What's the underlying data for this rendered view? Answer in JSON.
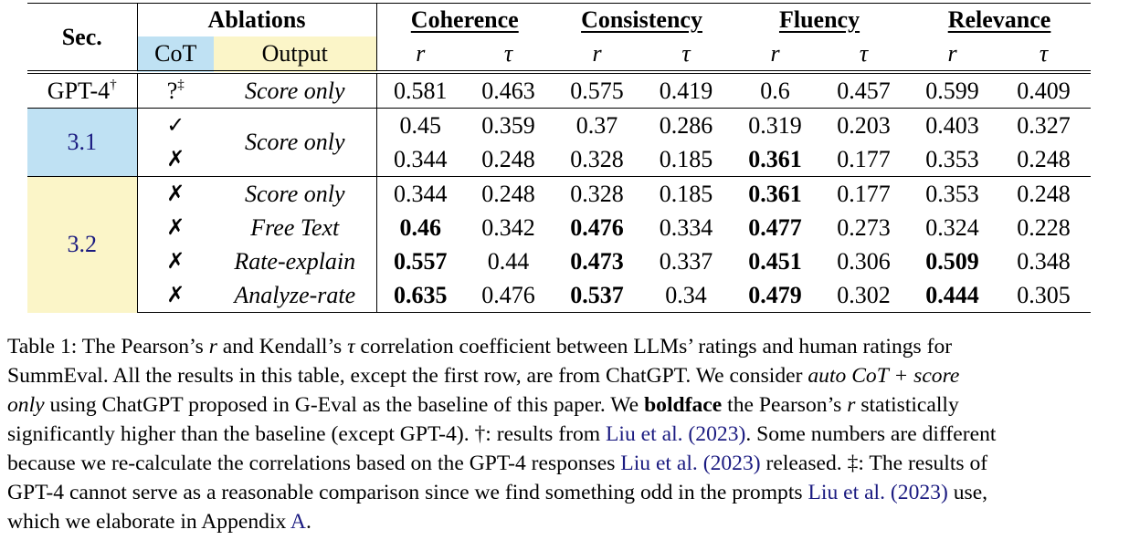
{
  "table": {
    "header": {
      "sec": "Sec.",
      "ablations": "Ablations",
      "cot": "CoT",
      "output": "Output",
      "metrics": [
        "Coherence",
        "Consistency",
        "Fluency",
        "Relevance"
      ],
      "r": "r",
      "tau": "τ"
    },
    "rows": [
      {
        "sec": "GPT-4",
        "sec_sup": "†",
        "cot": "?",
        "cot_sup": "‡",
        "output": "Score only",
        "values": [
          "0.581",
          "0.463",
          "0.575",
          "0.419",
          "0.6",
          "0.457",
          "0.599",
          "0.409"
        ],
        "bold": [
          false,
          false,
          false,
          false,
          false,
          false,
          false,
          false
        ]
      },
      {
        "sec": "3.1",
        "cot": "✓",
        "output": "Score only",
        "values": [
          "0.45",
          "0.359",
          "0.37",
          "0.286",
          "0.319",
          "0.203",
          "0.403",
          "0.327"
        ],
        "bold": [
          false,
          false,
          false,
          false,
          false,
          false,
          false,
          false
        ]
      },
      {
        "sec": "3.1",
        "cot": "✗",
        "output": "Score only",
        "values": [
          "0.344",
          "0.248",
          "0.328",
          "0.185",
          "0.361",
          "0.177",
          "0.353",
          "0.248"
        ],
        "bold": [
          false,
          false,
          false,
          false,
          true,
          false,
          false,
          false
        ]
      },
      {
        "sec": "3.2",
        "cot": "✗",
        "output": "Score only",
        "values": [
          "0.344",
          "0.248",
          "0.328",
          "0.185",
          "0.361",
          "0.177",
          "0.353",
          "0.248"
        ],
        "bold": [
          false,
          false,
          false,
          false,
          true,
          false,
          false,
          false
        ]
      },
      {
        "sec": "3.2",
        "cot": "✗",
        "output": "Free Text",
        "values": [
          "0.46",
          "0.342",
          "0.476",
          "0.334",
          "0.477",
          "0.273",
          "0.324",
          "0.228"
        ],
        "bold": [
          true,
          false,
          true,
          false,
          true,
          false,
          false,
          false
        ]
      },
      {
        "sec": "3.2",
        "cot": "✗",
        "output": "Rate-explain",
        "values": [
          "0.557",
          "0.44",
          "0.473",
          "0.337",
          "0.451",
          "0.306",
          "0.509",
          "0.348"
        ],
        "bold": [
          true,
          false,
          true,
          false,
          true,
          false,
          true,
          false
        ]
      },
      {
        "sec": "3.2",
        "cot": "✗",
        "output": "Analyze-rate",
        "values": [
          "0.635",
          "0.476",
          "0.537",
          "0.34",
          "0.479",
          "0.302",
          "0.444",
          "0.305"
        ],
        "bold": [
          true,
          false,
          true,
          false,
          true,
          false,
          true,
          false
        ]
      }
    ]
  },
  "caption": {
    "l1": "Table 1: The Pearson’s ",
    "l1_r": "r",
    "l1_b": " and Kendall’s ",
    "l1_tau": "τ",
    "l1_c": " correlation coefficient between LLMs’ ratings and human ratings for",
    "l2_a": "SummEval. All the results in this table, except the first row, are from ChatGPT. We consider ",
    "l2_ital": "auto CoT + score",
    "l3_ital": "only",
    "l3_a": " using ChatGPT proposed in G-Eval as the baseline of this paper. We ",
    "l3_bold": "boldface",
    "l3_b": " the Pearson’s ",
    "l3_r": "r",
    "l3_c": " statistically",
    "l4_a": "significantly higher than the baseline (except GPT-4). †: results from ",
    "cite_author": "Liu et al.",
    "cite_year": "2023",
    "l4_b": ". Some numbers are different",
    "l5_a": "because we re-calculate the correlations based on the GPT-4 responses ",
    "l5_b": " released. ‡: The results of",
    "l6_a": "GPT-4 cannot serve as a reasonable comparison since we find something odd in the prompts ",
    "l6_b": " use,",
    "l7_a": "which we elaborate in Appendix ",
    "appendix": "A",
    "l7_b": "."
  }
}
